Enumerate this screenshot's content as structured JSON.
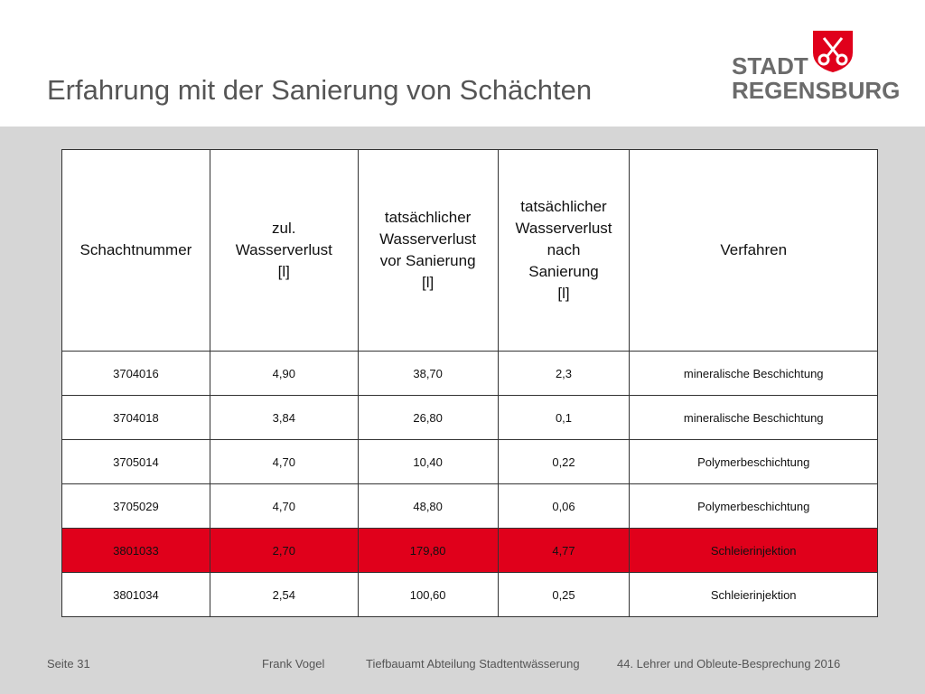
{
  "header": {
    "title": "Erfahrung mit der Sanierung von Schächten",
    "logo": {
      "line1": "STADT",
      "line2": "REGENSBURG"
    }
  },
  "table": {
    "columns": [
      "Schachtnummer",
      "zul.\nWasserverlust\n[l]",
      "tatsächlicher\nWasserverlust\nvor Sanierung\n[l]",
      "tatsächlicher\nWasserverlust\nnach\nSanierung\n[l]",
      "Verfahren"
    ],
    "rows": [
      [
        "3704016",
        "4,90",
        "38,70",
        "2,3",
        "mineralische Beschichtung"
      ],
      [
        "3704018",
        "3,84",
        "26,80",
        "0,1",
        "mineralische Beschichtung"
      ],
      [
        "3705014",
        "4,70",
        "10,40",
        "0,22",
        "Polymerbeschichtung"
      ],
      [
        "3705029",
        "4,70",
        "48,80",
        "0,06",
        "Polymerbeschichtung"
      ],
      [
        "3801033",
        "2,70",
        "179,80",
        "4,77",
        "Schleierinjektion"
      ],
      [
        "3801034",
        "2,54",
        "100,60",
        "0,25",
        "Schleierinjektion"
      ]
    ],
    "highlighted_row": 4,
    "highlight_color": "#e0001b"
  },
  "footer": {
    "page": "Seite 31",
    "author": "Frank Vogel",
    "department": "Tiefbauamt Abteilung Stadtentwässerung",
    "event": "44. Lehrer und Obleute-Besprechung 2016"
  }
}
